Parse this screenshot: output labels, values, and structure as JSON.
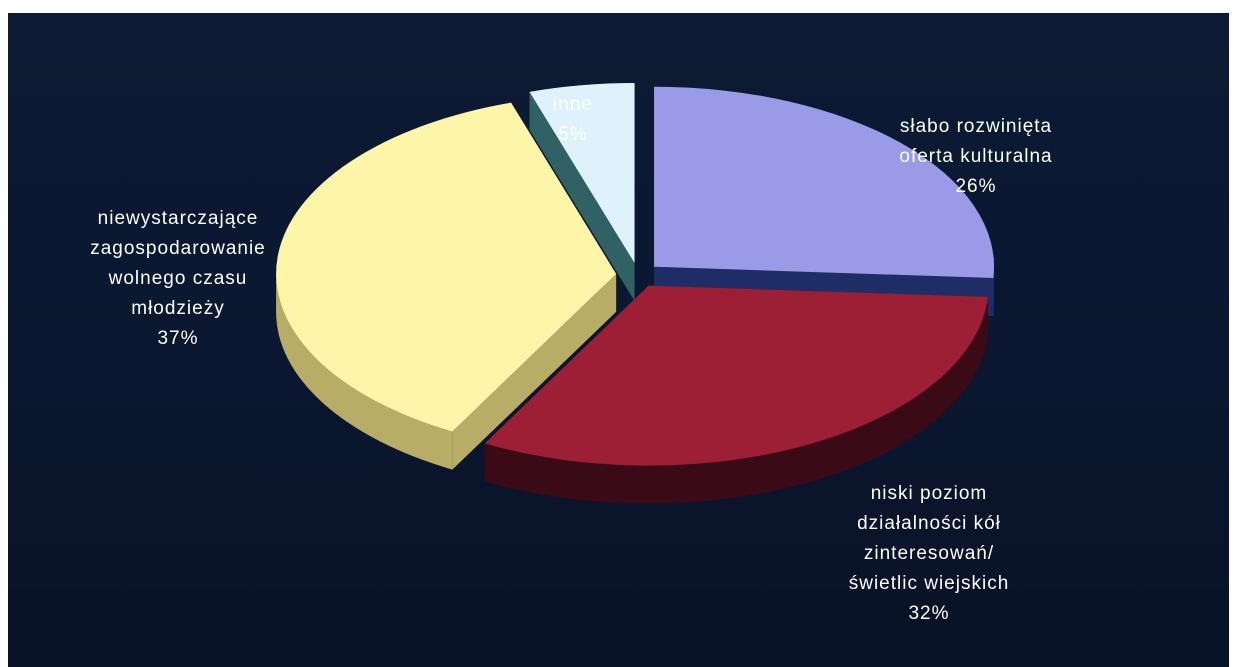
{
  "chart_data": {
    "type": "pie",
    "style": "3d-exploded",
    "background": "#0b1730",
    "slices": [
      {
        "lines": [
          "słabo rozwinięta",
          "oferta kulturalna"
        ],
        "value": 26,
        "pct": "26%",
        "color": "#9a9ae6",
        "side_color": "#1f2d66"
      },
      {
        "lines": [
          "niski poziom",
          "działalności kół",
          "zinteresowań/",
          "świetlic wiejskich"
        ],
        "value": 32,
        "pct": "32%",
        "color": "#9c1f36",
        "side_color": "#3a0a16"
      },
      {
        "lines": [
          "niewystarczające",
          "zagospodarowanie",
          "wolnego czasu",
          "młodzieży"
        ],
        "value": 37,
        "pct": "37%",
        "color": "#fdf6a8",
        "side_color": "#b8ad66"
      },
      {
        "lines": [
          "inne"
        ],
        "value": 5,
        "pct": "5%",
        "color": "#dff1fb",
        "side_color": "#2f6165"
      }
    ]
  }
}
